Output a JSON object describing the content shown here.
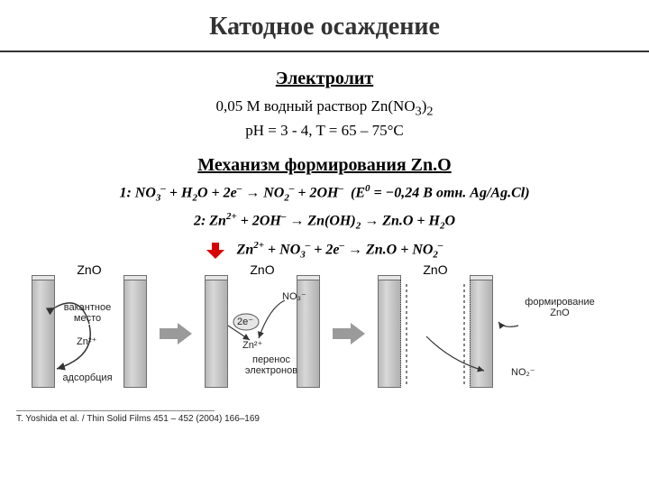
{
  "title": "Катодное осаждение",
  "section_electrolyte": "Электролит",
  "electrolyte_line1_html": "0,05 M водный раствор Zn(NO<sub>3</sub>)<sub>2</sub>",
  "electrolyte_line2": "pH = 3 - 4, T = 65 – 75°C",
  "section_mechanism_html": "Механизм формирования Zn.O",
  "eq1_html": "1: NO<span class='sub'>3</span><span class='sup'>–</span> + H<span class='sub'>2</span>O + 2e<span class='sup'>–</span> → NO<span class='sub'>2</span><span class='sup'>–</span> + 2OH<span class='sup'>–</span>&nbsp;&nbsp;(E<span class='sup'>0</span> = −0,24 В отн. Ag/Ag.Cl)",
  "eq2_html": "2: Zn<span class='sup'>2+</span> + 2OH<span class='sup'>–</span> → Zn(OH)<span class='sub'>2</span> → Zn.O + H<span class='sub'>2</span>O",
  "eq_sum_html": "Zn<span class='sup'>2+</span> + NO<span class='sub'>3</span><span class='sup'>–</span> + 2e<span class='sup'>–</span> → Zn.O + NO<span class='sub'>2</span><span class='sup'>–</span>",
  "colors": {
    "arrow_red": "#d90000",
    "arrow_gray": "#9a9a9a",
    "bar_light": "#d8d8d8",
    "bar_dark": "#b0b0b0",
    "border": "#6e6e6e",
    "label_stroke": "#333"
  },
  "diagram": {
    "label_zno": "ZnO",
    "panel1": {
      "vacant": "вакантное\nместо",
      "zn": "Zn²⁺",
      "adsorption": "адсорбция"
    },
    "panel2": {
      "charge": "2e⁻",
      "zn": "Zn²⁺",
      "no3": "NO₃⁻",
      "transfer": "перенос\nэлектронов"
    },
    "panel3": {
      "formation": "формирование\nZnO",
      "no2": "NO₂⁻"
    }
  },
  "citation": "T. Yoshida et al. / Thin Solid Films 451 – 452 (2004) 166–169"
}
